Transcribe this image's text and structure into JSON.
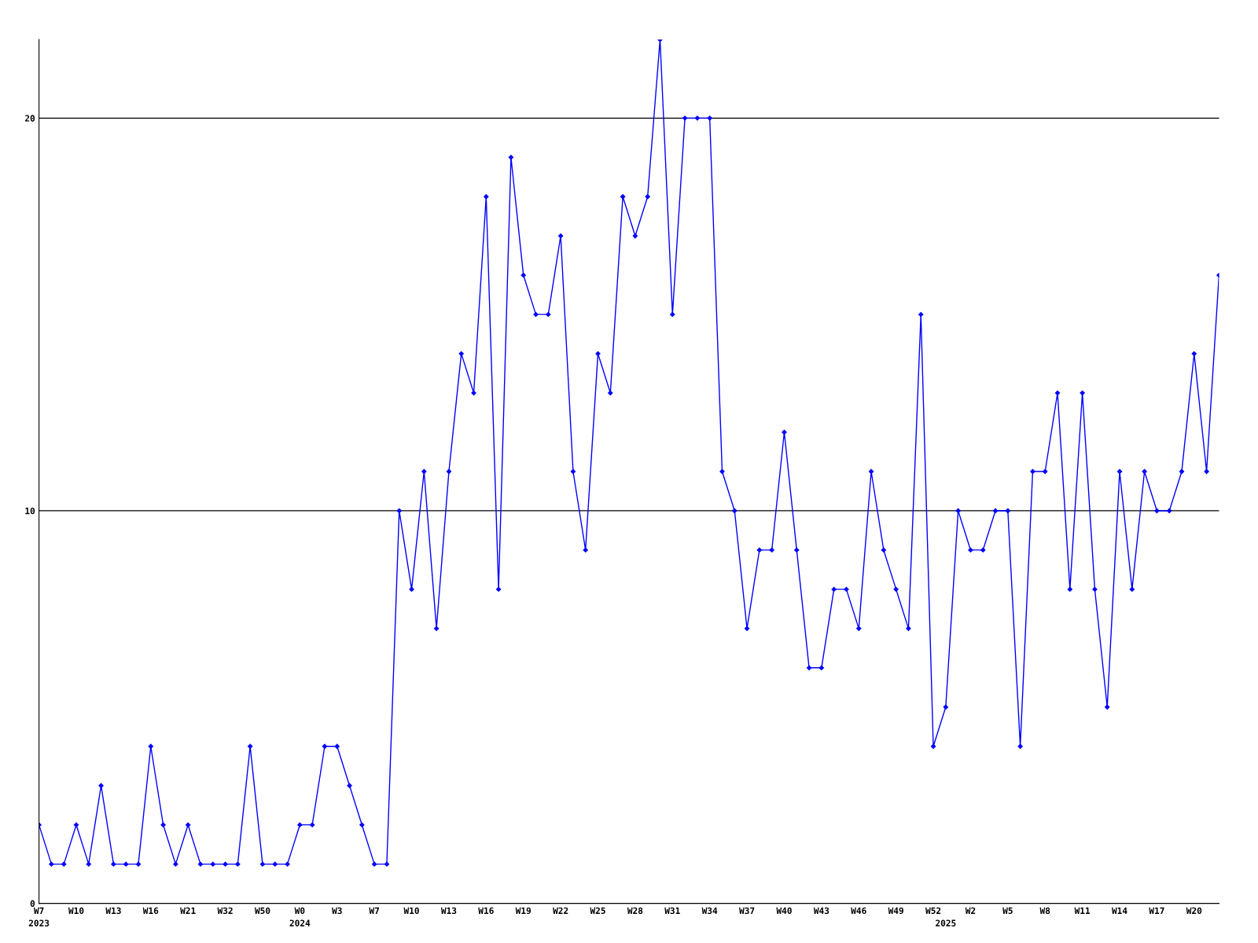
{
  "chart_data": {
    "type": "line",
    "categories": [
      "W7\n2023",
      null,
      null,
      "W10",
      null,
      null,
      "W13",
      null,
      null,
      "W16",
      null,
      null,
      "W21",
      null,
      null,
      "W32",
      null,
      null,
      "W50",
      null,
      null,
      "W0\n2024",
      null,
      null,
      "W3",
      null,
      null,
      "W7",
      null,
      null,
      "W10",
      null,
      null,
      "W13",
      null,
      null,
      "W16",
      null,
      null,
      "W19",
      null,
      null,
      "W22",
      null,
      null,
      "W25",
      null,
      null,
      "W28",
      null,
      null,
      "W31",
      null,
      null,
      "W34",
      null,
      null,
      "W37",
      null,
      null,
      "W40",
      null,
      null,
      "W43",
      null,
      null,
      "W46",
      null,
      null,
      "W49",
      null,
      null,
      "W52",
      "\n2025",
      null,
      "W2",
      null,
      null,
      "W5",
      null,
      null,
      "W8",
      null,
      null,
      "W11",
      null,
      null,
      "W14",
      null,
      null,
      "W17",
      null,
      null,
      "W20",
      null,
      null
    ],
    "series": [
      {
        "color": "#0000ff",
        "values": [
          2,
          1,
          1,
          2,
          1,
          3,
          1,
          1,
          1,
          4,
          2,
          1,
          2,
          1,
          1,
          1,
          1,
          4,
          1,
          1,
          1,
          2,
          2,
          4,
          4,
          3,
          2,
          1,
          1,
          10,
          8,
          11,
          7,
          11,
          14,
          13,
          18,
          8,
          19,
          16,
          15,
          15,
          17,
          11,
          9,
          14,
          13,
          18,
          17,
          18,
          22,
          15,
          20,
          20,
          20,
          11,
          10,
          7,
          9,
          9,
          12,
          9,
          6,
          6,
          8,
          8,
          7,
          11,
          9,
          8,
          7,
          15,
          4,
          5,
          10,
          9,
          9,
          10,
          10,
          4,
          11,
          11,
          13,
          8,
          13,
          8,
          5,
          11,
          8,
          11,
          10,
          10,
          11,
          14,
          11,
          16
        ]
      }
    ],
    "ylim": [
      0,
      22
    ],
    "yticks": [
      0,
      10,
      20
    ],
    "grid": "y",
    "marker": "diamond",
    "line_style": "solid",
    "legend": false
  }
}
